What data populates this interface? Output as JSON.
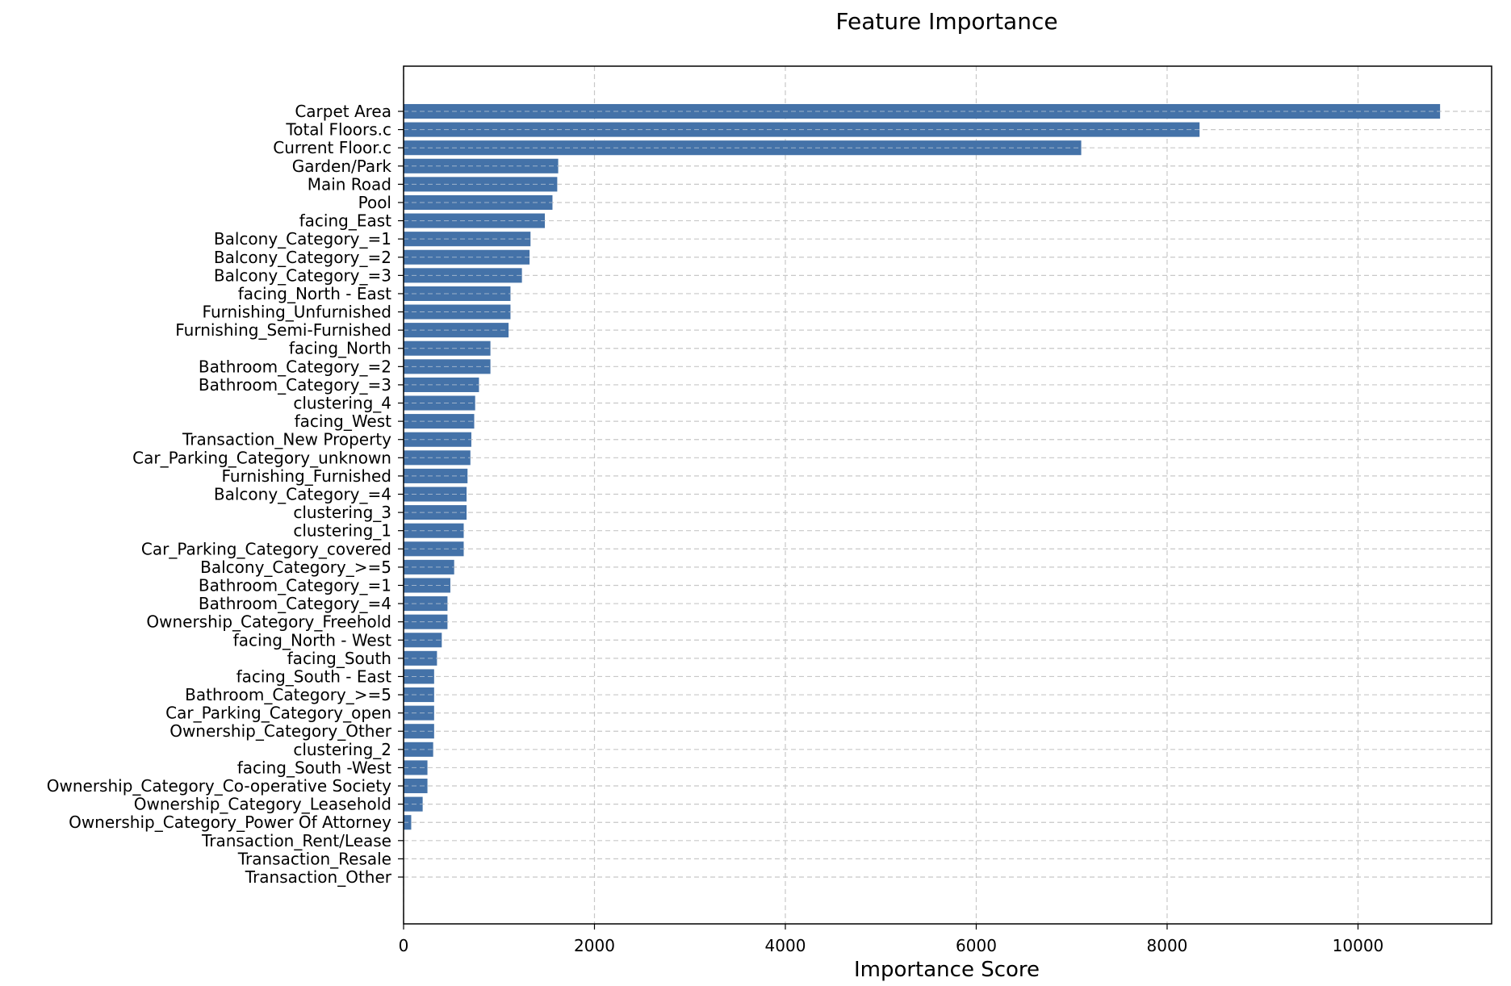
{
  "chart_data": {
    "type": "bar",
    "orientation": "horizontal",
    "title": "Feature Importance",
    "xlabel": "Importance Score",
    "ylabel": "",
    "xlim": [
      0,
      11400
    ],
    "xticks": [
      0,
      2000,
      4000,
      6000,
      8000,
      10000
    ],
    "grid": true,
    "bar_color": "#4472a8",
    "categories": [
      "Carpet Area",
      "Total Floors.c",
      "Current Floor.c",
      "Garden/Park",
      "Main Road",
      "Pool",
      "facing_East",
      "Balcony_Category_=1",
      "Balcony_Category_=2",
      "Balcony_Category_=3",
      "facing_North - East",
      "Furnishing_Unfurnished",
      "Furnishing_Semi-Furnished",
      "facing_North",
      "Bathroom_Category_=2",
      "Bathroom_Category_=3",
      "clustering_4",
      "facing_West",
      "Transaction_New Property",
      "Car_Parking_Category_unknown",
      "Furnishing_Furnished",
      "Balcony_Category_=4",
      "clustering_3",
      "clustering_1",
      "Car_Parking_Category_covered",
      "Balcony_Category_>=5",
      "Bathroom_Category_=1",
      "Bathroom_Category_=4",
      "Ownership_Category_Freehold",
      "facing_North - West",
      "facing_South",
      "facing_South - East",
      "Bathroom_Category_>=5",
      "Car_Parking_Category_open",
      "Ownership_Category_Other",
      "clustering_2",
      "facing_South -West",
      "Ownership_Category_Co-operative Society",
      "Ownership_Category_Leasehold",
      "Ownership_Category_Power Of Attorney",
      "Transaction_Rent/Lease",
      "Transaction_Resale",
      "Transaction_Other"
    ],
    "values": [
      10860,
      8340,
      7100,
      1620,
      1610,
      1560,
      1480,
      1330,
      1320,
      1240,
      1120,
      1120,
      1100,
      910,
      910,
      790,
      750,
      740,
      710,
      700,
      670,
      660,
      660,
      630,
      630,
      530,
      490,
      460,
      460,
      400,
      350,
      320,
      320,
      320,
      320,
      310,
      250,
      250,
      200,
      80,
      0,
      0,
      0
    ]
  }
}
